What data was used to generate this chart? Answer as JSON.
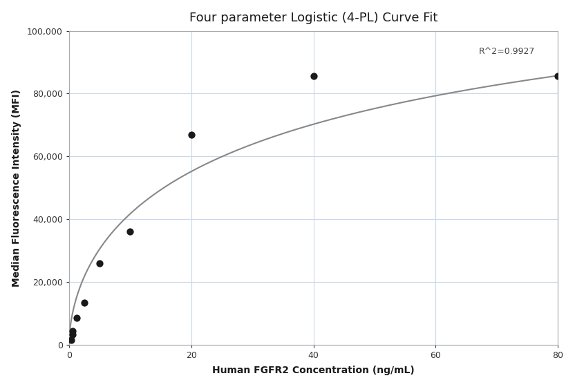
{
  "title": "Four parameter Logistic (4-PL) Curve Fit",
  "xlabel": "Human FGFR2 Concentration (ng/mL)",
  "ylabel": "Median Fluorescence Intensity (MFI)",
  "pts_x": [
    0.3125,
    0.625,
    0.625,
    1.25,
    2.5,
    5.0,
    10.0,
    20.0,
    40.0,
    80.0
  ],
  "pts_y": [
    1500,
    3200,
    4500,
    8500,
    13500,
    26000,
    36000,
    67000,
    85500,
    85500
  ],
  "xlim": [
    0,
    80
  ],
  "ylim": [
    0,
    100000
  ],
  "yticks": [
    0,
    20000,
    40000,
    60000,
    80000,
    100000
  ],
  "xticks": [
    0,
    20,
    40,
    60,
    80
  ],
  "r_squared_text": "R^2=0.9927",
  "r_squared_x": 67,
  "r_squared_y": 92000,
  "point_color": "#1a1a1a",
  "curve_color": "#888888",
  "grid_color": "#c8d8e8",
  "background_color": "#ffffff",
  "title_fontsize": 13,
  "label_fontsize": 10,
  "tick_fontsize": 9
}
